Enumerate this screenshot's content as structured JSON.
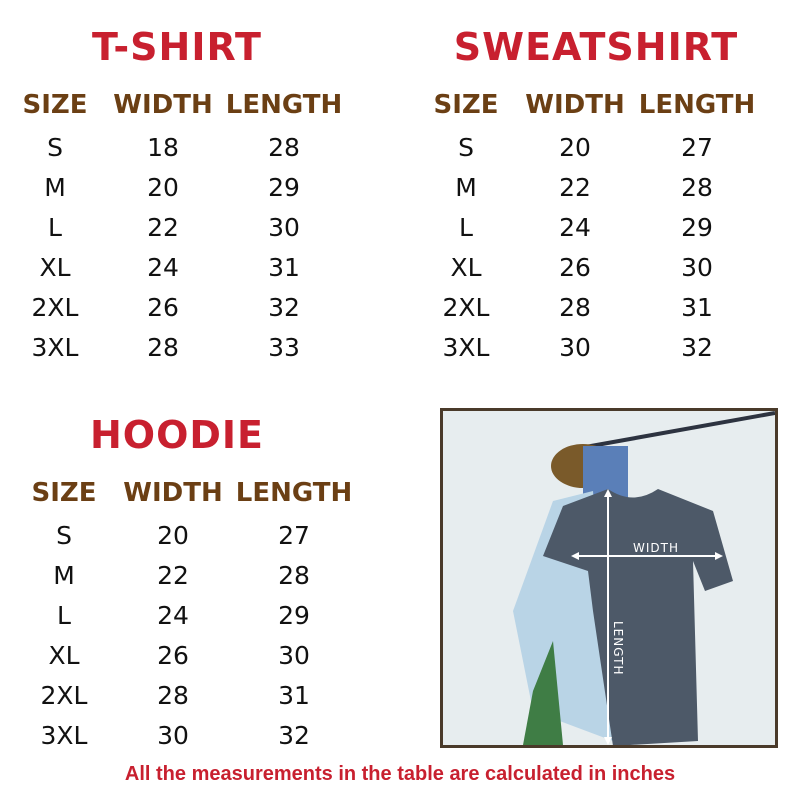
{
  "tables": [
    {
      "title": "T-SHIRT",
      "headers": [
        "SIZE",
        "WIDTH",
        "LENGTH"
      ],
      "rows": [
        [
          "S",
          "18",
          "28"
        ],
        [
          "M",
          "20",
          "29"
        ],
        [
          "L",
          "22",
          "30"
        ],
        [
          "XL",
          "24",
          "31"
        ],
        [
          "2XL",
          "26",
          "32"
        ],
        [
          "3XL",
          "28",
          "33"
        ]
      ]
    },
    {
      "title": "SWEATSHIRT",
      "headers": [
        "SIZE",
        "WIDTH",
        "LENGTH"
      ],
      "rows": [
        [
          "S",
          "20",
          "27"
        ],
        [
          "M",
          "22",
          "28"
        ],
        [
          "L",
          "24",
          "29"
        ],
        [
          "XL",
          "26",
          "30"
        ],
        [
          "2XL",
          "28",
          "31"
        ],
        [
          "3XL",
          "30",
          "32"
        ]
      ]
    },
    {
      "title": "HOODIE",
      "headers": [
        "SIZE",
        "WIDTH",
        "LENGTH"
      ],
      "rows": [
        [
          "S",
          "20",
          "27"
        ],
        [
          "M",
          "22",
          "28"
        ],
        [
          "L",
          "24",
          "29"
        ],
        [
          "XL",
          "26",
          "30"
        ],
        [
          "2XL",
          "28",
          "31"
        ],
        [
          "3XL",
          "30",
          "32"
        ]
      ]
    }
  ],
  "photo": {
    "width_label": "WIDTH",
    "length_label": "LENGTH"
  },
  "footer": "All the measurements in the table are calculated in inches",
  "colors": {
    "title": "#c8202f",
    "header": "#6b3f14",
    "text": "#111111"
  }
}
